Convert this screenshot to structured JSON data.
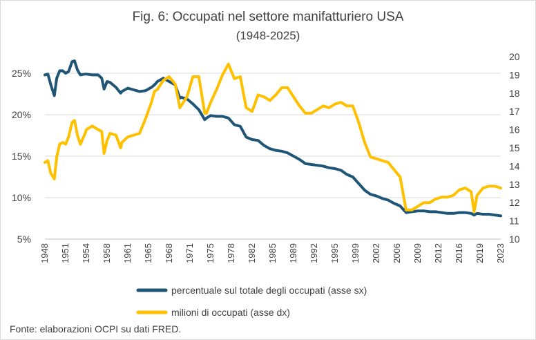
{
  "chart_data": {
    "type": "line",
    "title": "Fig. 6: Occupati nel settore manifatturiero USA",
    "subtitle": "(1948-2025)",
    "source": "Fonte: elaborazioni OCPI su dati FRED.",
    "x_tick_labels": [
      "1948",
      "1951",
      "1954",
      "1958",
      "1961",
      "1965",
      "1968",
      "1971",
      "1975",
      "1978",
      "1982",
      "1985",
      "1989",
      "1992",
      "1995",
      "1999",
      "2002",
      "2006",
      "2009",
      "2012",
      "2016",
      "2019",
      "2023"
    ],
    "y_left": {
      "ticks": [
        "5%",
        "10%",
        "15%",
        "20%",
        "25%"
      ],
      "tick_values": [
        5,
        10,
        15,
        20,
        25
      ],
      "range": [
        5,
        27
      ]
    },
    "y_right": {
      "ticks": [
        "10",
        "11",
        "12",
        "13",
        "14",
        "15",
        "16",
        "17",
        "18",
        "19",
        "20"
      ],
      "tick_values": [
        10,
        11,
        12,
        13,
        14,
        15,
        16,
        17,
        18,
        19,
        20
      ],
      "range": [
        10,
        20
      ]
    },
    "grid": true,
    "legend_position": "bottom",
    "series": [
      {
        "name": "percentuale sul totale degli occupati (asse sx)",
        "axis": "left",
        "color": "#1f5577",
        "x": [
          1948,
          1948.5,
          1949,
          1949.6,
          1950,
          1950.5,
          1951,
          1951.5,
          1952,
          1952.6,
          1953,
          1953.5,
          1954,
          1954.8,
          1955,
          1956,
          1957,
          1957.6,
          1958,
          1958.5,
          1959,
          1960,
          1960.8,
          1961,
          1962,
          1963,
          1964,
          1965,
          1966,
          1966.5,
          1967,
          1968,
          1969,
          1970,
          1970.8,
          1971,
          1972,
          1973,
          1974,
          1975,
          1975.3,
          1976,
          1977,
          1978,
          1979,
          1980,
          1981,
          1982,
          1983,
          1984,
          1985,
          1986,
          1987,
          1988,
          1989,
          1990,
          1991,
          1992,
          1993,
          1994,
          1995,
          1996,
          1997,
          1998,
          1999,
          2000,
          2001,
          2002,
          2003,
          2004,
          2005,
          2006,
          2007,
          2008,
          2009,
          2010,
          2011,
          2012,
          2013,
          2014,
          2015,
          2016,
          2017,
          2018,
          2019,
          2020,
          2020.5,
          2021,
          2022,
          2023,
          2024,
          2025
        ],
        "y": [
          24.8,
          24.9,
          23.6,
          22.3,
          24.4,
          25.3,
          25.3,
          25.0,
          25.2,
          26.4,
          26.5,
          25.4,
          24.8,
          24.9,
          24.9,
          24.8,
          24.8,
          24.4,
          23.1,
          24.0,
          23.9,
          23.3,
          22.6,
          22.8,
          23.2,
          23.0,
          22.8,
          22.9,
          23.3,
          23.6,
          24.0,
          24.4,
          24.0,
          23.6,
          22.0,
          22.1,
          21.9,
          21.3,
          20.6,
          19.4,
          19.6,
          19.9,
          19.8,
          19.8,
          19.6,
          18.8,
          18.6,
          17.3,
          17.0,
          16.9,
          16.3,
          15.9,
          15.7,
          15.6,
          15.4,
          15.0,
          14.6,
          14.1,
          14.0,
          13.9,
          13.8,
          13.6,
          13.5,
          13.3,
          12.8,
          12.5,
          11.7,
          10.9,
          10.4,
          10.2,
          9.9,
          9.7,
          9.3,
          9.0,
          8.2,
          8.3,
          8.4,
          8.4,
          8.3,
          8.3,
          8.2,
          8.1,
          8.1,
          8.2,
          8.2,
          8.1,
          7.9,
          8.1,
          8.0,
          8.0,
          7.9,
          7.8
        ]
      },
      {
        "name": "milioni di occupati (asse dx)",
        "axis": "right",
        "color": "#ffc000",
        "x": [
          1948,
          1948.5,
          1949,
          1949.6,
          1950,
          1950.5,
          1951,
          1951.5,
          1952,
          1952.6,
          1953,
          1953.5,
          1954,
          1954.8,
          1955,
          1956,
          1957,
          1957.6,
          1958,
          1958.5,
          1959,
          1960,
          1960.8,
          1961,
          1962,
          1963,
          1964,
          1965,
          1966,
          1966.5,
          1967,
          1968,
          1969,
          1970,
          1970.8,
          1971,
          1972,
          1973,
          1974,
          1975,
          1975.3,
          1976,
          1977,
          1978,
          1979,
          1980,
          1981,
          1982,
          1983,
          1984,
          1985,
          1986,
          1987,
          1988,
          1989,
          1990,
          1991,
          1992,
          1993,
          1994,
          1995,
          1996,
          1997,
          1998,
          1999,
          2000,
          2001,
          2002,
          2003,
          2004,
          2005,
          2006,
          2007,
          2008,
          2009,
          2010,
          2011,
          2012,
          2013,
          2014,
          2015,
          2016,
          2017,
          2018,
          2019,
          2020,
          2020.5,
          2021,
          2022,
          2023,
          2024,
          2025
        ],
        "y": [
          14.2,
          14.3,
          13.6,
          13.3,
          14.5,
          15.2,
          15.3,
          15.2,
          15.6,
          16.4,
          16.5,
          15.7,
          15.2,
          15.8,
          16.0,
          16.2,
          16.0,
          15.9,
          14.7,
          15.4,
          15.8,
          15.7,
          15.0,
          15.3,
          15.6,
          15.7,
          15.8,
          16.6,
          17.5,
          18.1,
          18.2,
          18.7,
          18.9,
          18.5,
          17.2,
          17.3,
          17.8,
          18.9,
          18.9,
          16.9,
          16.9,
          17.5,
          18.2,
          19.0,
          19.6,
          18.8,
          18.9,
          17.2,
          17.0,
          17.9,
          17.8,
          17.6,
          17.9,
          18.3,
          18.3,
          17.8,
          17.3,
          16.9,
          16.9,
          17.1,
          17.3,
          17.2,
          17.4,
          17.5,
          17.3,
          17.3,
          16.4,
          15.3,
          14.5,
          14.4,
          14.3,
          14.2,
          13.8,
          13.4,
          11.6,
          11.6,
          11.8,
          12.0,
          12.0,
          12.2,
          12.3,
          12.3,
          12.4,
          12.7,
          12.8,
          12.6,
          11.5,
          12.4,
          12.8,
          12.9,
          12.9,
          12.8
        ]
      }
    ]
  }
}
